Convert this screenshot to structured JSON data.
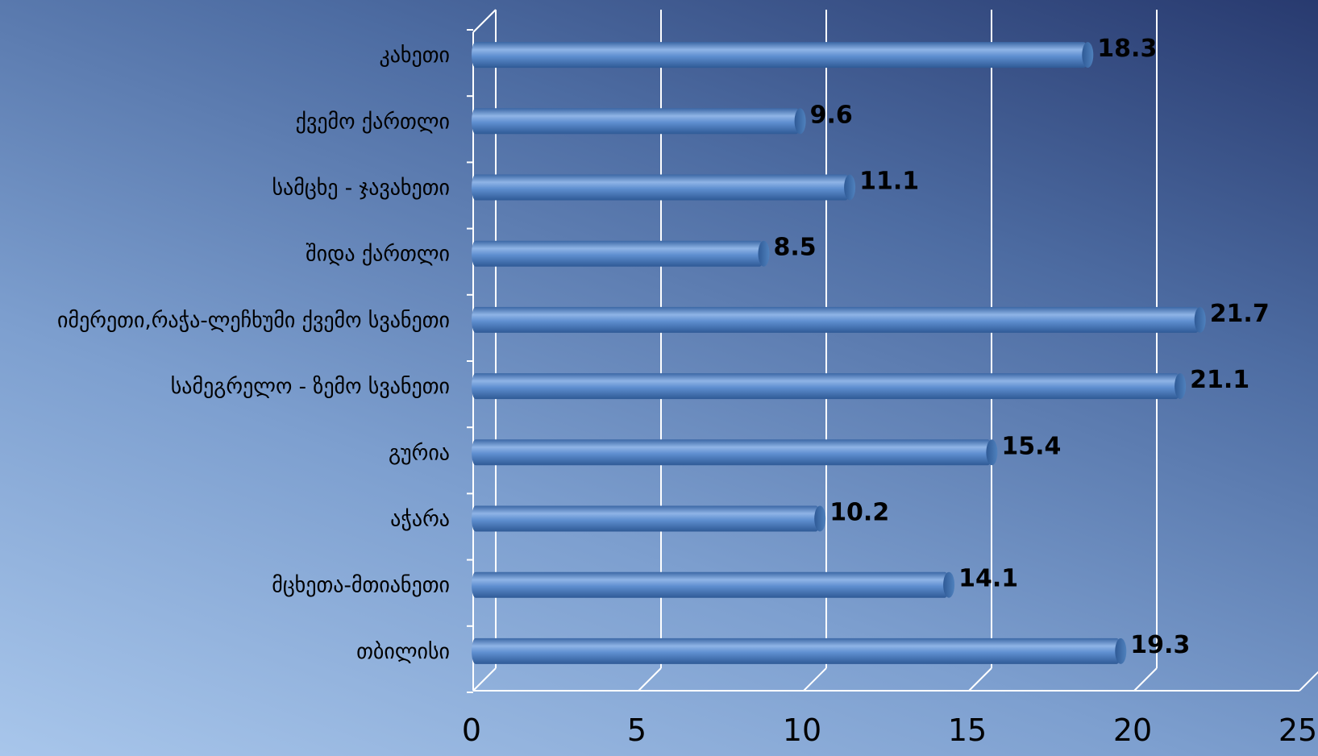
{
  "chart_data": {
    "type": "bar",
    "orientation": "horizontal",
    "style": "3d-cylinder",
    "categories": [
      "კახეთი",
      "ქვემო ქართლი",
      "სამცხე - ჯავახეთი",
      "შიდა ქართლი",
      "იმერეთი,რაჭა-ლეჩხუმი ქვემო სვანეთი",
      "სამეგრელო - ზემო სვანეთი",
      "გურია",
      "აჭარა",
      "მცხეთა-მთიანეთი",
      "თბილისი"
    ],
    "values": [
      18.3,
      9.6,
      11.1,
      8.5,
      21.7,
      21.1,
      15.4,
      10.2,
      14.1,
      19.3
    ],
    "xlim": [
      0,
      25
    ],
    "xticks": [
      0,
      5,
      10,
      15,
      20,
      25
    ],
    "grid": true,
    "legend": "none",
    "colors": {
      "bar": "#4f81bd",
      "bar_light": "#8fb4e6",
      "bar_dark": "#2f5a96",
      "grid": "#ffffff",
      "text": "#000000"
    }
  }
}
